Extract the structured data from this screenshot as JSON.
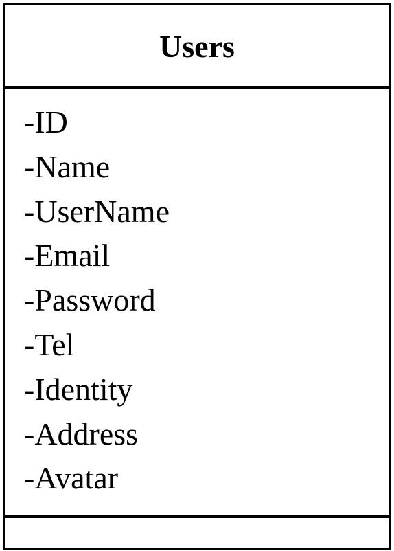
{
  "class": {
    "name": "Users",
    "attributes": [
      "-ID",
      "-Name",
      "-UserName",
      "-Email",
      "-Password",
      "-Tel",
      "-Identity",
      "-Address",
      "-Avatar"
    ],
    "methods": []
  }
}
